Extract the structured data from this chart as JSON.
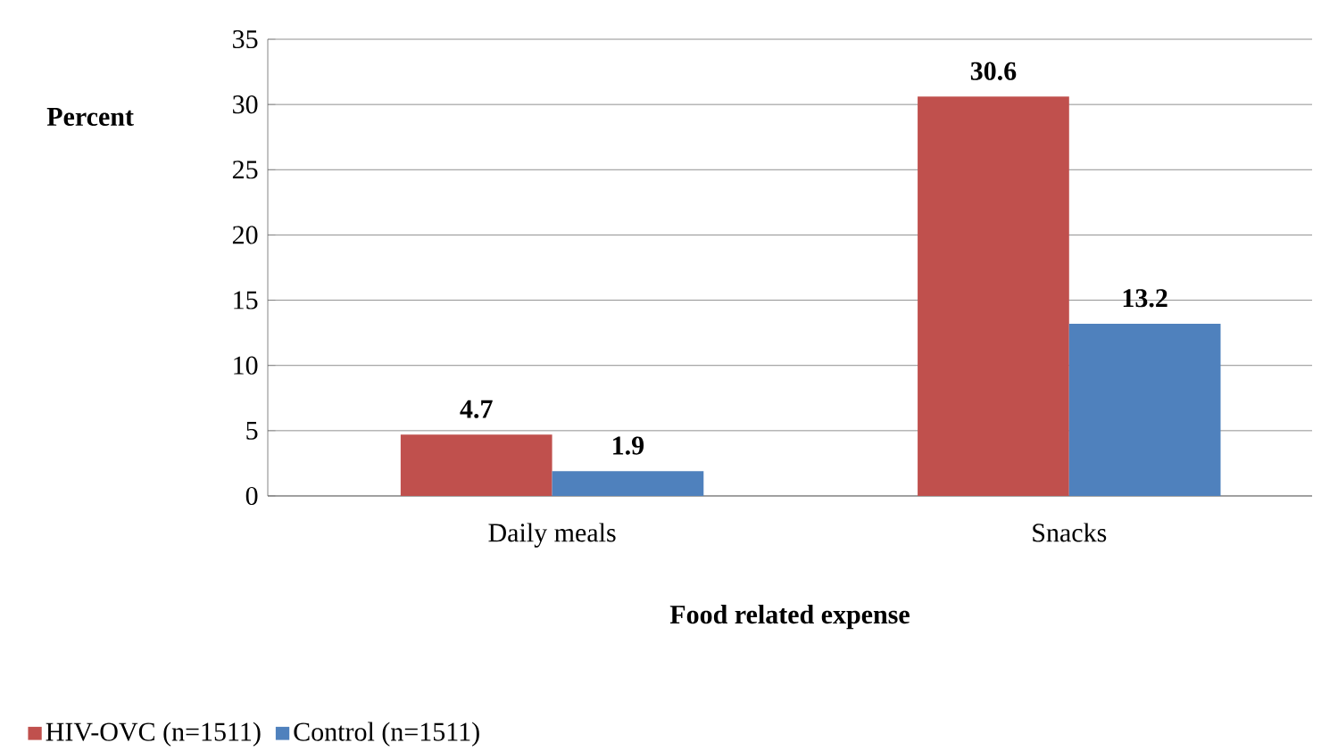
{
  "chart_data": {
    "type": "bar",
    "xlabel": "Food related expense",
    "ylabel": "Percent",
    "categories": [
      "Daily meals",
      "Snacks"
    ],
    "series": [
      {
        "name": "HIV-OVC (n=1511)",
        "color": "#c0504d",
        "values": [
          4.7,
          30.6
        ]
      },
      {
        "name": "Control (n=1511)",
        "color": "#4f81bd",
        "values": [
          1.9,
          13.2
        ]
      }
    ],
    "ylim": [
      0,
      35
    ],
    "yticks": [
      0,
      5,
      10,
      15,
      20,
      25,
      30,
      35
    ],
    "grid": "y",
    "legend": "bottom left",
    "data_labels": true
  }
}
